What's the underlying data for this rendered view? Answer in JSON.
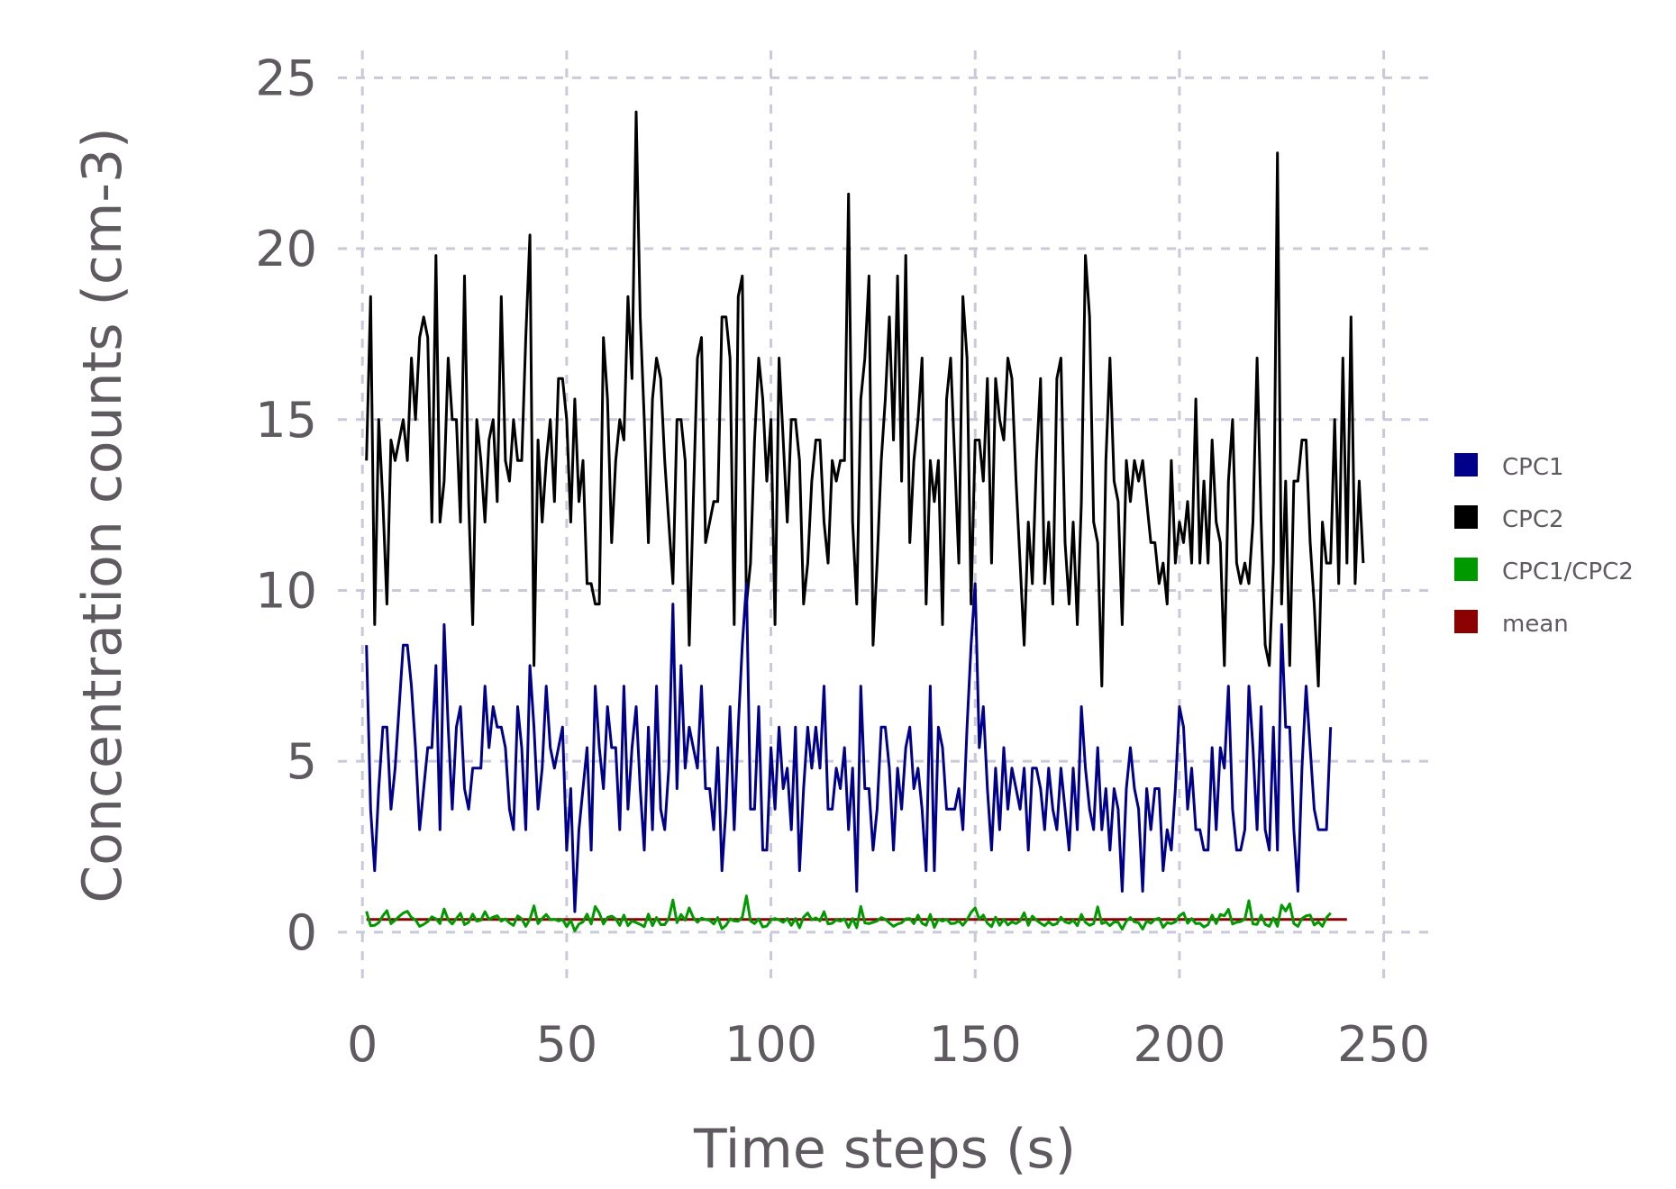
{
  "chart_data": {
    "type": "line",
    "title": "",
    "xlabel": "Time steps (s)",
    "ylabel": "Concentration counts (cm-3)",
    "xlim": [
      -6,
      262
    ],
    "ylim": [
      -1.4,
      25.8
    ],
    "xticks": [
      0,
      50,
      100,
      150,
      200,
      250
    ],
    "yticks": [
      0,
      5,
      10,
      15,
      20,
      25
    ],
    "xtick_labels": [
      "0",
      "50",
      "100",
      "150",
      "200",
      "250"
    ],
    "ytick_labels": [
      "0",
      "5",
      "10",
      "15",
      "20",
      "25"
    ],
    "grid": true,
    "legend_position": "right",
    "series": [
      {
        "name": "CPC1",
        "color": "#00008b",
        "x_start": 1,
        "values": [
          8.4,
          3.6,
          1.8,
          4.2,
          6.0,
          6.0,
          3.6,
          4.8,
          6.6,
          8.4,
          8.4,
          7.2,
          5.4,
          3.0,
          4.2,
          5.4,
          5.4,
          7.8,
          3.0,
          9.0,
          6.0,
          3.6,
          6.0,
          6.6,
          4.2,
          3.6,
          4.8,
          4.8,
          4.8,
          7.2,
          5.4,
          6.6,
          6.0,
          6.0,
          5.4,
          3.6,
          3.0,
          6.6,
          5.4,
          3.0,
          7.8,
          6.0,
          3.6,
          4.8,
          7.2,
          5.4,
          4.8,
          5.4,
          6.0,
          2.4,
          4.2,
          0.6,
          3.0,
          4.2,
          5.4,
          2.4,
          7.2,
          5.4,
          4.2,
          6.6,
          5.4,
          5.4,
          3.0,
          7.2,
          3.6,
          5.4,
          6.6,
          4.2,
          2.4,
          6.0,
          3.0,
          7.2,
          3.6,
          3.0,
          4.8,
          9.6,
          4.2,
          7.8,
          4.8,
          6.0,
          5.4,
          4.8,
          7.2,
          4.2,
          4.2,
          3.0,
          5.4,
          1.8,
          3.6,
          6.6,
          3.0,
          6.0,
          8.4,
          10.2,
          3.6,
          3.6,
          6.6,
          2.4,
          2.4,
          5.4,
          3.6,
          6.0,
          4.2,
          4.8,
          3.0,
          6.0,
          1.8,
          4.2,
          6.0,
          4.8,
          6.0,
          4.8,
          7.2,
          3.6,
          3.6,
          4.8,
          4.2,
          5.4,
          3.0,
          4.8,
          1.2,
          7.2,
          4.2,
          4.2,
          2.4,
          3.6,
          6.0,
          6.0,
          4.8,
          2.4,
          4.8,
          3.6,
          5.4,
          6.0,
          4.2,
          4.8,
          3.6,
          1.8,
          7.2,
          1.8,
          6.0,
          5.4,
          3.6,
          3.6,
          3.6,
          4.2,
          3.0,
          6.0,
          8.4,
          10.2,
          5.4,
          6.6,
          4.2,
          2.4,
          4.8,
          3.0,
          5.4,
          3.6,
          4.8,
          4.2,
          3.6,
          4.8,
          2.4,
          4.8,
          4.8,
          4.2,
          3.0,
          4.8,
          3.6,
          3.0,
          4.8,
          3.6,
          2.4,
          4.8,
          3.0,
          6.6,
          4.8,
          3.6,
          3.0,
          5.4,
          3.0,
          4.2,
          2.4,
          4.2,
          3.6,
          1.2,
          4.2,
          5.4,
          4.2,
          3.6,
          1.2,
          4.2,
          3.0,
          4.2,
          4.2,
          1.8,
          3.0,
          2.4,
          4.2,
          6.6,
          6.0,
          3.6,
          4.8,
          3.0,
          3.0,
          2.4,
          2.4,
          5.4,
          3.0,
          5.4,
          4.8,
          7.2,
          3.6,
          2.4,
          2.4,
          3.0,
          7.2,
          5.4,
          3.0,
          6.6,
          3.0,
          2.4,
          6.0,
          2.4,
          9.0,
          6.0,
          6.0,
          3.0,
          1.2,
          4.8,
          7.2,
          5.4,
          3.6,
          3.0,
          3.0,
          3.0,
          6.0
        ]
      },
      {
        "name": "CPC2",
        "color": "#000000",
        "x_start": 1,
        "values": [
          13.8,
          18.6,
          9.0,
          15.0,
          12.6,
          9.6,
          14.4,
          13.8,
          14.4,
          15.0,
          13.8,
          16.8,
          15.0,
          17.4,
          18.0,
          17.4,
          12.0,
          19.8,
          12.0,
          13.2,
          16.8,
          15.0,
          15.0,
          12.0,
          19.2,
          12.6,
          9.0,
          15.0,
          13.8,
          12.0,
          14.4,
          15.0,
          12.6,
          18.6,
          13.8,
          13.2,
          15.0,
          13.8,
          13.8,
          17.4,
          20.4,
          7.8,
          14.4,
          12.0,
          13.8,
          15.0,
          12.6,
          16.2,
          16.2,
          15.0,
          12.0,
          15.6,
          12.6,
          13.8,
          10.2,
          10.2,
          9.6,
          9.6,
          17.4,
          15.6,
          11.4,
          13.8,
          15.0,
          14.4,
          18.6,
          16.2,
          24.0,
          18.0,
          15.0,
          11.4,
          15.6,
          16.8,
          16.2,
          13.8,
          12.0,
          10.2,
          15.0,
          15.0,
          13.8,
          8.4,
          12.6,
          16.8,
          17.4,
          11.4,
          12.0,
          12.6,
          12.6,
          18.0,
          18.0,
          16.8,
          9.0,
          18.6,
          19.2,
          9.6,
          10.8,
          14.4,
          16.8,
          15.6,
          13.2,
          15.0,
          9.0,
          16.8,
          14.4,
          12.0,
          15.0,
          15.0,
          13.8,
          9.6,
          10.8,
          13.2,
          14.4,
          14.4,
          12.0,
          10.8,
          13.8,
          13.2,
          13.8,
          13.8,
          21.6,
          12.0,
          9.6,
          15.6,
          16.8,
          19.2,
          8.4,
          10.8,
          13.8,
          15.6,
          18.0,
          14.4,
          19.2,
          13.2,
          19.8,
          11.4,
          13.8,
          15.0,
          16.8,
          9.6,
          13.8,
          12.6,
          13.8,
          9.0,
          15.6,
          16.8,
          13.8,
          10.8,
          18.6,
          16.8,
          9.6,
          14.4,
          14.4,
          13.2,
          16.2,
          10.8,
          16.2,
          15.0,
          14.4,
          16.8,
          16.2,
          13.2,
          10.8,
          8.4,
          12.0,
          10.2,
          13.8,
          16.2,
          10.2,
          12.0,
          9.6,
          16.2,
          16.8,
          11.4,
          9.6,
          12.0,
          9.0,
          12.6,
          19.8,
          18.0,
          12.0,
          11.4,
          7.2,
          13.8,
          16.8,
          13.2,
          12.6,
          9.0,
          13.8,
          12.6,
          13.8,
          13.2,
          13.8,
          12.6,
          11.4,
          11.4,
          10.2,
          10.8,
          9.6,
          13.8,
          10.8,
          12.0,
          11.4,
          12.6,
          10.8,
          15.6,
          10.8,
          13.2,
          10.8,
          14.4,
          12.0,
          11.4,
          7.8,
          13.2,
          15.0,
          10.8,
          10.2,
          10.8,
          10.2,
          12.0,
          16.8,
          12.0,
          8.4,
          7.8,
          10.8,
          22.8,
          9.6,
          13.2,
          7.8,
          13.2,
          13.2,
          14.4,
          14.4,
          11.4,
          9.6,
          7.2,
          12.0,
          10.8,
          10.8,
          15.0,
          10.2,
          16.8,
          10.8,
          18.0,
          10.2,
          13.2,
          10.8
        ]
      },
      {
        "name": "CPC1/CPC2",
        "color": "#009900",
        "x_start": 1,
        "values": [
          0.61,
          0.19,
          0.2,
          0.28,
          0.48,
          0.63,
          0.25,
          0.35,
          0.46,
          0.56,
          0.61,
          0.43,
          0.36,
          0.17,
          0.23,
          0.31,
          0.45,
          0.39,
          0.25,
          0.68,
          0.36,
          0.24,
          0.4,
          0.55,
          0.22,
          0.29,
          0.53,
          0.32,
          0.35,
          0.6,
          0.37,
          0.44,
          0.48,
          0.32,
          0.39,
          0.27,
          0.2,
          0.48,
          0.39,
          0.17,
          0.38,
          0.77,
          0.25,
          0.4,
          0.52,
          0.36,
          0.38,
          0.33,
          0.37,
          0.16,
          0.35,
          0.04,
          0.24,
          0.3,
          0.53,
          0.24,
          0.75,
          0.56,
          0.24,
          0.43,
          0.47,
          0.39,
          0.2,
          0.5,
          0.19,
          0.33,
          0.28,
          0.23,
          0.16,
          0.53,
          0.19,
          0.43,
          0.22,
          0.22,
          0.4,
          0.94,
          0.28,
          0.52,
          0.35,
          0.71,
          0.43,
          0.29,
          0.41,
          0.37,
          0.35,
          0.24,
          0.43,
          0.1,
          0.2,
          0.39,
          0.33,
          0.32,
          0.44,
          1.06,
          0.33,
          0.25,
          0.39,
          0.15,
          0.18,
          0.36,
          0.4,
          0.36,
          0.29,
          0.4,
          0.2,
          0.4,
          0.13,
          0.44,
          0.56,
          0.36,
          0.42,
          0.33,
          0.6,
          0.24,
          0.26,
          0.36,
          0.32,
          0.39,
          0.14,
          0.4,
          0.13,
          0.75,
          0.27,
          0.25,
          0.29,
          0.33,
          0.43,
          0.38,
          0.27,
          0.17,
          0.24,
          0.27,
          0.39,
          0.4,
          0.25,
          0.5,
          0.26,
          0.2,
          0.52,
          0.14,
          0.38,
          0.32,
          0.38,
          0.25,
          0.26,
          0.33,
          0.2,
          0.36,
          0.58,
          0.71,
          0.38,
          0.5,
          0.26,
          0.16,
          0.44,
          0.2,
          0.38,
          0.21,
          0.3,
          0.25,
          0.33,
          0.57,
          0.2,
          0.47,
          0.35,
          0.26,
          0.19,
          0.3,
          0.21,
          0.25,
          0.44,
          0.3,
          0.26,
          0.35,
          0.19,
          0.52,
          0.29,
          0.2,
          0.25,
          0.74,
          0.25,
          0.3,
          0.19,
          0.3,
          0.29,
          0.09,
          0.32,
          0.43,
          0.3,
          0.28,
          0.09,
          0.33,
          0.26,
          0.37,
          0.41,
          0.14,
          0.28,
          0.25,
          0.3,
          0.48,
          0.56,
          0.26,
          0.4,
          0.25,
          0.26,
          0.15,
          0.22,
          0.5,
          0.25,
          0.52,
          0.48,
          0.67,
          0.24,
          0.29,
          0.31,
          0.38,
          0.92,
          0.24,
          0.23,
          0.5,
          0.23,
          0.17,
          0.42,
          0.17,
          0.79,
          0.62,
          0.83,
          0.25,
          0.17,
          0.4,
          0.48,
          0.5,
          0.21,
          0.3,
          0.17,
          0.42,
          0.56
        ]
      },
      {
        "name": "mean",
        "color": "#8b0000",
        "x_start": 1,
        "constant": 0.37,
        "x_end": 241
      }
    ]
  }
}
